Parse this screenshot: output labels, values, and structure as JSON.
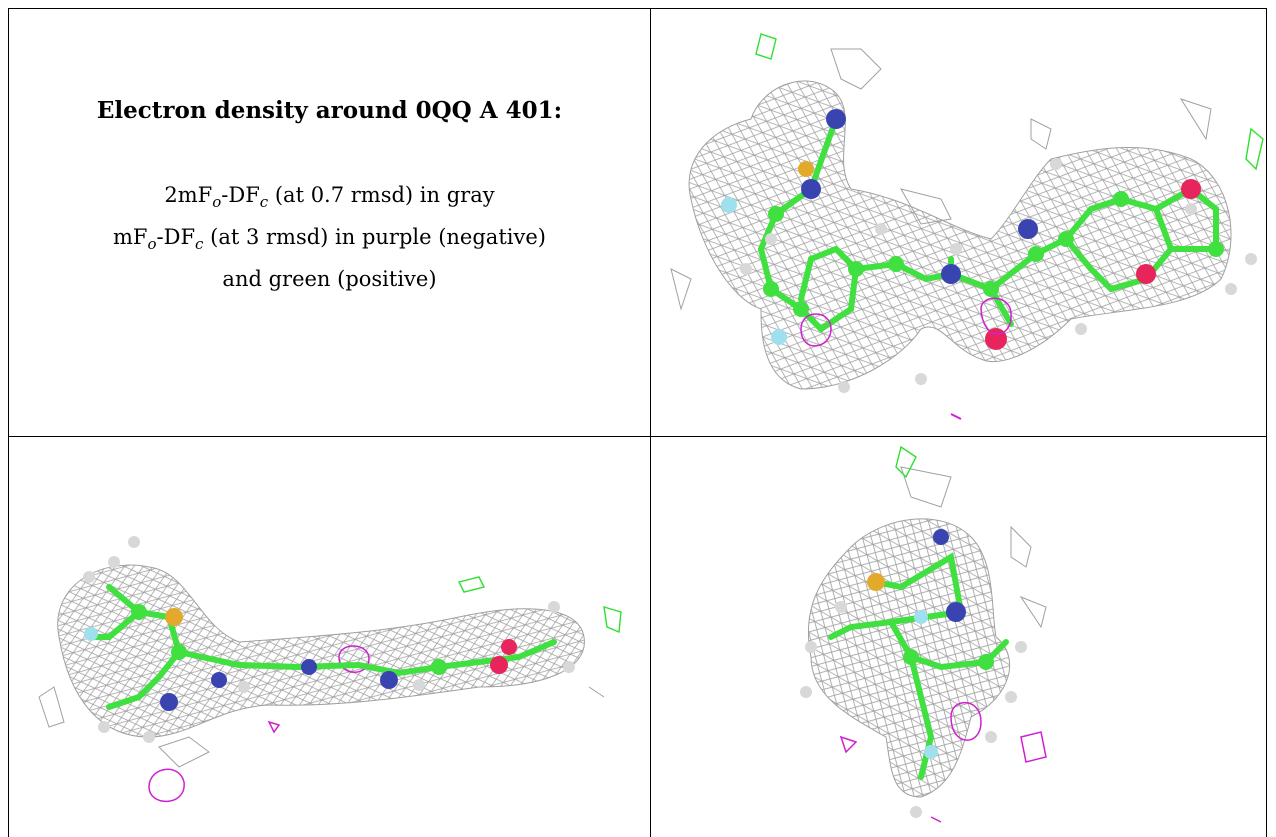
{
  "caption": {
    "title": "Electron density around 0QQ A 401:",
    "line1_prefix": "2mF",
    "line1_sub_o": "o",
    "line1_mid": "-DF",
    "line1_sub_c": "c",
    "line1_suffix": " (at 0.7 rmsd) in gray",
    "line2_prefix": "mF",
    "line2_sub_o": "o",
    "line2_mid": "-DF",
    "line2_sub_c": "c",
    "line2_suffix": " (at 3 rmsd) in purple (negative)",
    "line3": "and green (positive)"
  },
  "colors": {
    "mesh_gray": "#9a9a9a",
    "carbon_green": "#3fe03f",
    "nitrogen_blue": "#3a44b0",
    "oxygen_red": "#e8245c",
    "sulfur_yellow": "#e3a92a",
    "fluorine_cyan": "#9fe0ee",
    "hydrogen_white": "#d8d8d8",
    "diff_negative_purple": "#d020d0",
    "diff_positive_green": "#2ee02e"
  },
  "panels": [
    {
      "view": "top-right",
      "icon": "ligand-density-view-1"
    },
    {
      "view": "bottom-left",
      "icon": "ligand-density-view-2"
    },
    {
      "view": "bottom-right",
      "icon": "ligand-density-view-3"
    }
  ]
}
